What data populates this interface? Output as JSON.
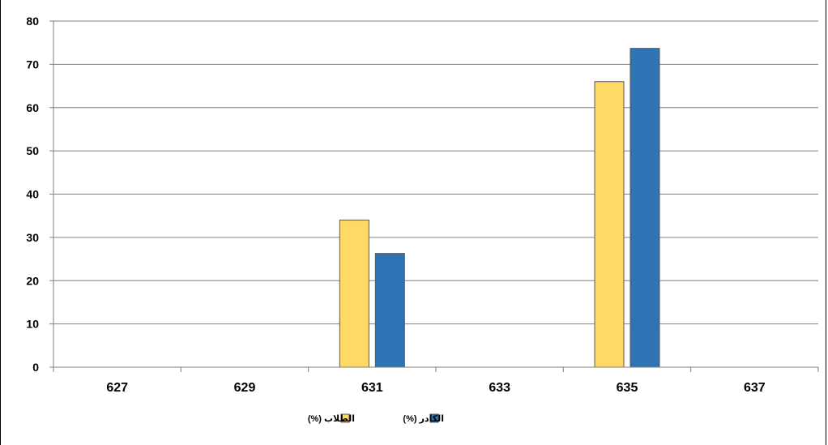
{
  "chart_data": {
    "type": "bar",
    "categories": [
      "627",
      "629",
      "631",
      "633",
      "635",
      "637"
    ],
    "series": [
      {
        "name": "الطلاب (%)",
        "color": "#FFD966",
        "values": [
          0,
          0,
          34,
          0,
          66,
          0
        ]
      },
      {
        "name": "الكادر (%)",
        "color": "#2E74B5",
        "values": [
          0,
          0,
          26.3,
          0,
          73.7,
          0
        ]
      }
    ],
    "ylim": [
      0,
      80
    ],
    "yticks": [
      0,
      10,
      20,
      30,
      40,
      50,
      60,
      70,
      80
    ],
    "grid": true,
    "legend_position": "bottom-center",
    "title": "",
    "xlabel": "",
    "ylabel": ""
  }
}
